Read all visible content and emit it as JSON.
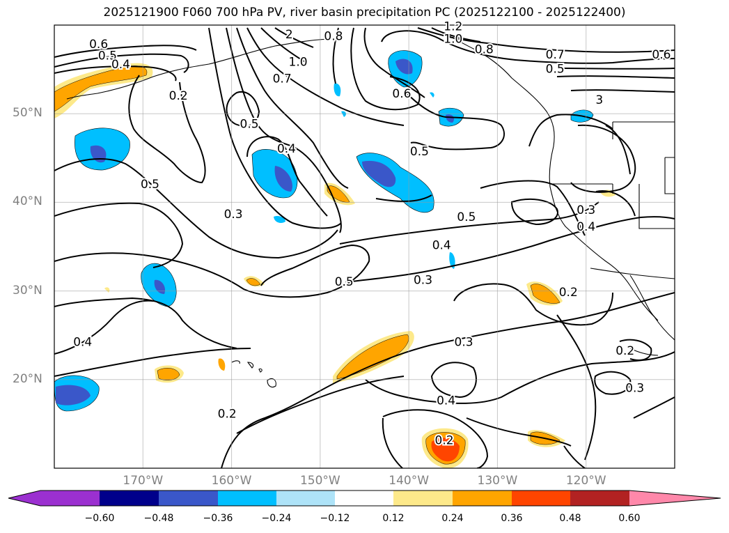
{
  "title": "2025121900 F060 700 hPa PV, river basin precipitation PC (2025122100 - 2025122400)",
  "map": {
    "lon_range": [
      -180,
      -110
    ],
    "lat_range": [
      10,
      60
    ],
    "lat_labels": [
      "50°N",
      "40°N",
      "30°N",
      "20°N"
    ],
    "lon_labels": [
      "170°W",
      "160°W",
      "150°W",
      "140°W",
      "130°W",
      "120°W"
    ],
    "gridlines": true
  },
  "contour_labels": [
    {
      "text": "0.6",
      "lon": -175,
      "lat": 57.8
    },
    {
      "text": "0.5",
      "lon": -174,
      "lat": 56.5
    },
    {
      "text": "0.4",
      "lon": -172.5,
      "lat": 55.5
    },
    {
      "text": "0.2",
      "lon": -166,
      "lat": 52
    },
    {
      "text": "2",
      "lon": -153.5,
      "lat": 58.9
    },
    {
      "text": "0.8",
      "lon": -148.5,
      "lat": 58.7
    },
    {
      "text": "1.0",
      "lon": -152.5,
      "lat": 55.8
    },
    {
      "text": "0.7",
      "lon": -154.3,
      "lat": 53.9
    },
    {
      "text": "1.2",
      "lon": -135,
      "lat": 59.8
    },
    {
      "text": "1.0",
      "lon": -135,
      "lat": 58.4
    },
    {
      "text": "0.8",
      "lon": -131.5,
      "lat": 57.2
    },
    {
      "text": "0.7",
      "lon": -123.5,
      "lat": 56.6
    },
    {
      "text": "0.6",
      "lon": -111.5,
      "lat": 56.6
    },
    {
      "text": "0.5",
      "lon": -123.5,
      "lat": 55
    },
    {
      "text": "0.6",
      "lon": -140.8,
      "lat": 52.2
    },
    {
      "text": "3",
      "lon": -118.5,
      "lat": 51.5
    },
    {
      "text": "0.5",
      "lon": -158,
      "lat": 48.8
    },
    {
      "text": "0.4",
      "lon": -153.8,
      "lat": 46
    },
    {
      "text": "0.5",
      "lon": -138.8,
      "lat": 45.7
    },
    {
      "text": "0.5",
      "lon": -169.2,
      "lat": 42
    },
    {
      "text": "0.3",
      "lon": -159.8,
      "lat": 38.6
    },
    {
      "text": "0.5",
      "lon": -133.5,
      "lat": 38.3
    },
    {
      "text": "0.3",
      "lon": -120,
      "lat": 39.1
    },
    {
      "text": "0.4",
      "lon": -120,
      "lat": 37.2
    },
    {
      "text": "0.4",
      "lon": -136.3,
      "lat": 35.1
    },
    {
      "text": "0.5",
      "lon": -147.3,
      "lat": 31
    },
    {
      "text": "0.3",
      "lon": -138.4,
      "lat": 31.2
    },
    {
      "text": "0.2",
      "lon": -122,
      "lat": 29.8
    },
    {
      "text": "0.4",
      "lon": -176.8,
      "lat": 24.2
    },
    {
      "text": "0.3",
      "lon": -133.8,
      "lat": 24.2
    },
    {
      "text": "0.2",
      "lon": -115.6,
      "lat": 23.2
    },
    {
      "text": "0.3",
      "lon": -114.5,
      "lat": 19
    },
    {
      "text": "0.4",
      "lon": -135.8,
      "lat": 17.6
    },
    {
      "text": "0.2",
      "lon": -160.5,
      "lat": 16.1
    },
    {
      "text": "0.2",
      "lon": -136,
      "lat": 13.1
    }
  ],
  "colorbar": {
    "ticks": [
      "−0.60",
      "−0.48",
      "−0.36",
      "−0.24",
      "−0.12",
      "0.12",
      "0.24",
      "0.36",
      "0.48",
      "0.60"
    ],
    "colors": [
      "#9b30d0",
      "#00008b",
      "#3a57c9",
      "#00bfff",
      "#aee3f8",
      "#ffffff",
      "#fde98a",
      "#ffa500",
      "#ff4500",
      "#b22222",
      "#ff88aa"
    ]
  },
  "shaded_regions": [
    {
      "sign": "negative",
      "center_lon": -175,
      "center_lat": 46.8,
      "intensity": 3
    },
    {
      "sign": "negative",
      "center_lon": -154.5,
      "center_lat": 44.2,
      "intensity": 3
    },
    {
      "sign": "negative",
      "center_lon": -141.8,
      "center_lat": 42.5,
      "intensity": 3
    },
    {
      "sign": "negative",
      "center_lon": -140.6,
      "center_lat": 56.2,
      "intensity": 3
    },
    {
      "sign": "negative",
      "center_lon": -136.1,
      "center_lat": 50.5,
      "intensity": 2
    },
    {
      "sign": "negative",
      "center_lon": -117,
      "center_lat": 50.6,
      "intensity": 1
    },
    {
      "sign": "negative",
      "center_lon": -167.7,
      "center_lat": 31.1,
      "intensity": 3
    },
    {
      "sign": "negative",
      "center_lon": -178.1,
      "center_lat": 18.6,
      "intensity": 3
    },
    {
      "sign": "negative",
      "center_lon": -149.2,
      "center_lat": 53.3,
      "intensity": 1
    },
    {
      "sign": "negative",
      "center_lon": -154.7,
      "center_lat": 38.3,
      "intensity": 1
    },
    {
      "sign": "negative",
      "center_lon": -135,
      "center_lat": 34.1,
      "intensity": 1
    },
    {
      "sign": "positive",
      "center_lon": -175,
      "center_lat": 53.8,
      "intensity": 2
    },
    {
      "sign": "positive",
      "center_lon": -148.2,
      "center_lat": 40.4,
      "intensity": 2
    },
    {
      "sign": "positive",
      "center_lon": -142.3,
      "center_lat": 23.2,
      "intensity": 2
    },
    {
      "sign": "positive",
      "center_lon": -166.8,
      "center_lat": 20.7,
      "intensity": 2
    },
    {
      "sign": "positive",
      "center_lon": -160.9,
      "center_lat": 21.5,
      "intensity": 2
    },
    {
      "sign": "positive",
      "center_lon": -157.6,
      "center_lat": 30.8,
      "intensity": 2
    },
    {
      "sign": "positive",
      "center_lon": -124.5,
      "center_lat": 30,
      "intensity": 2
    },
    {
      "sign": "positive",
      "center_lon": -124.8,
      "center_lat": 13.2,
      "intensity": 2
    },
    {
      "sign": "positive",
      "center_lon": -135.8,
      "center_lat": 12.3,
      "intensity": 3
    },
    {
      "sign": "positive",
      "center_lon": -117.5,
      "center_lat": 40.9,
      "intensity": 1
    }
  ]
}
